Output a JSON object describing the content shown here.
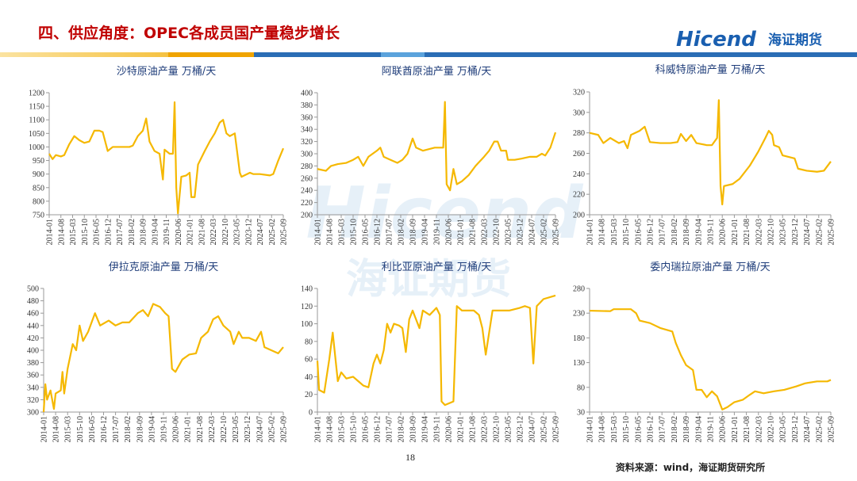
{
  "header": {
    "title": "四、供应角度：OPEC各成员国产量稳步增长"
  },
  "logo": {
    "brand": "Hicend",
    "cn": "海证期货"
  },
  "page_number": "18",
  "source": "资料来源：wind，海证期货研究所",
  "chart_data": [
    {
      "type": "line",
      "title": "沙特原油产量 万桶/天",
      "color": "#f5b800",
      "xlim": [
        "2014-01",
        "2025-09"
      ],
      "xticks": [
        "2014-01",
        "2014-08",
        "2015-03",
        "2015-10",
        "2016-05",
        "2016-12",
        "2017-07",
        "2018-02",
        "2018-09",
        "2019-04",
        "2019-11",
        "2020-06",
        "2021-01",
        "2021-08",
        "2022-03",
        "2022-10",
        "2023-05",
        "2023-12",
        "2024-07",
        "2025-02",
        "2025-09"
      ],
      "ylim": [
        750,
        1200
      ],
      "yticks": [
        750,
        800,
        850,
        900,
        950,
        1000,
        1050,
        1100,
        1150,
        1200
      ],
      "x": [
        "2014-01",
        "2014-03",
        "2014-05",
        "2014-08",
        "2014-10",
        "2015-01",
        "2015-04",
        "2015-07",
        "2015-10",
        "2016-01",
        "2016-04",
        "2016-07",
        "2016-09",
        "2016-12",
        "2017-03",
        "2017-07",
        "2017-10",
        "2018-01",
        "2018-03",
        "2018-06",
        "2018-09",
        "2018-11",
        "2019-01",
        "2019-04",
        "2019-07",
        "2019-09",
        "2019-10",
        "2020-01",
        "2020-03",
        "2020-04",
        "2020-05",
        "2020-06",
        "2020-08",
        "2020-11",
        "2021-01",
        "2021-02",
        "2021-04",
        "2021-06",
        "2021-10",
        "2022-01",
        "2022-04",
        "2022-07",
        "2022-09",
        "2022-11",
        "2023-01",
        "2023-04",
        "2023-07",
        "2023-08",
        "2024-01",
        "2024-03",
        "2024-07",
        "2025-01",
        "2025-03",
        "2025-06",
        "2025-09"
      ],
      "values": [
        975,
        955,
        970,
        965,
        970,
        1010,
        1040,
        1025,
        1015,
        1020,
        1060,
        1060,
        1055,
        985,
        1000,
        1000,
        1000,
        1000,
        1005,
        1040,
        1060,
        1105,
        1020,
        985,
        975,
        880,
        990,
        975,
        975,
        1165,
        850,
        755,
        890,
        895,
        905,
        815,
        815,
        935,
        985,
        1020,
        1050,
        1090,
        1100,
        1050,
        1040,
        1050,
        905,
        890,
        905,
        900,
        900,
        895,
        900,
        950,
        995
      ]
    },
    {
      "type": "line",
      "title": "阿联酋原油产量 万桶/天",
      "color": "#f5b800",
      "xlim": [
        "2014-01",
        "2025-09"
      ],
      "xticks": [
        "2014-01",
        "2014-08",
        "2015-03",
        "2015-10",
        "2016-05",
        "2016-12",
        "2017-07",
        "2018-02",
        "2018-09",
        "2019-04",
        "2019-11",
        "2020-06",
        "2021-01",
        "2021-08",
        "2022-03",
        "2022-10",
        "2023-05",
        "2023-12",
        "2024-07",
        "2025-02",
        "2025-09"
      ],
      "ylim": [
        200,
        400
      ],
      "yticks": [
        200,
        220,
        240,
        260,
        280,
        300,
        320,
        340,
        360,
        380,
        400
      ],
      "x": [
        "2014-01",
        "2014-06",
        "2014-09",
        "2015-01",
        "2015-06",
        "2015-10",
        "2016-01",
        "2016-04",
        "2016-07",
        "2016-12",
        "2017-02",
        "2017-04",
        "2017-08",
        "2017-12",
        "2018-03",
        "2018-06",
        "2018-09",
        "2018-11",
        "2019-03",
        "2019-10",
        "2020-01",
        "2020-03",
        "2020-04",
        "2020-05",
        "2020-07",
        "2020-09",
        "2020-11",
        "2021-02",
        "2021-06",
        "2021-10",
        "2022-03",
        "2022-06",
        "2022-09",
        "2022-11",
        "2023-01",
        "2023-04",
        "2023-05",
        "2023-09",
        "2024-01",
        "2024-06",
        "2024-10",
        "2025-01",
        "2025-03",
        "2025-06",
        "2025-09"
      ],
      "values": [
        275,
        272,
        280,
        283,
        285,
        290,
        295,
        280,
        295,
        305,
        310,
        295,
        290,
        285,
        290,
        300,
        325,
        310,
        305,
        310,
        310,
        310,
        385,
        250,
        240,
        275,
        250,
        255,
        265,
        280,
        295,
        305,
        320,
        320,
        305,
        305,
        290,
        290,
        292,
        295,
        295,
        300,
        297,
        310,
        335
      ]
    },
    {
      "type": "line",
      "title": "科威特原油产量 万桶/天",
      "color": "#f5b800",
      "xlim": [
        "2014-01",
        "2025-09"
      ],
      "xticks": [
        "2014-01",
        "2014-08",
        "2015-03",
        "2015-10",
        "2016-05",
        "2016-12",
        "2017-07",
        "2018-02",
        "2018-09",
        "2019-04",
        "2019-11",
        "2020-06",
        "2021-01",
        "2021-08",
        "2022-03",
        "2022-10",
        "2023-05",
        "2023-12",
        "2024-07",
        "2025-02",
        "2025-09"
      ],
      "ylim": [
        200,
        320
      ],
      "yticks": [
        200,
        220,
        240,
        260,
        280,
        300,
        320
      ],
      "x": [
        "2014-01",
        "2014-06",
        "2014-09",
        "2015-01",
        "2015-06",
        "2015-09",
        "2015-11",
        "2016-01",
        "2016-06",
        "2016-09",
        "2016-12",
        "2017-06",
        "2017-12",
        "2018-04",
        "2018-06",
        "2018-09",
        "2018-12",
        "2019-03",
        "2019-09",
        "2019-12",
        "2020-03",
        "2020-04",
        "2020-05",
        "2020-06",
        "2020-07",
        "2020-12",
        "2021-04",
        "2021-10",
        "2022-03",
        "2022-07",
        "2022-09",
        "2022-11",
        "2022-12",
        "2023-03",
        "2023-05",
        "2023-12",
        "2024-02",
        "2024-07",
        "2025-01",
        "2025-05",
        "2025-09"
      ],
      "values": [
        280,
        278,
        270,
        275,
        270,
        272,
        265,
        278,
        282,
        286,
        271,
        270,
        270,
        271,
        279,
        272,
        278,
        270,
        268,
        268,
        275,
        312,
        228,
        210,
        228,
        230,
        235,
        248,
        262,
        275,
        282,
        278,
        268,
        266,
        258,
        255,
        245,
        243,
        242,
        243,
        252
      ]
    },
    {
      "type": "line",
      "title": "伊拉克原油产量 万桶/天",
      "color": "#f5b800",
      "xlim": [
        "2014-01",
        "2025-09"
      ],
      "xticks": [
        "2014-01",
        "2014-08",
        "2015-03",
        "2015-10",
        "2016-05",
        "2016-12",
        "2017-07",
        "2018-02",
        "2018-09",
        "2019-04",
        "2019-11",
        "2020-06",
        "2021-01",
        "2021-08",
        "2022-03",
        "2022-10",
        "2023-05",
        "2023-12",
        "2024-07",
        "2025-02",
        "2025-09"
      ],
      "ylim": [
        300,
        500
      ],
      "yticks": [
        300,
        320,
        340,
        360,
        380,
        400,
        420,
        440,
        460,
        480,
        500
      ],
      "x": [
        "2014-01",
        "2014-02",
        "2014-03",
        "2014-05",
        "2014-07",
        "2014-08",
        "2014-11",
        "2014-12",
        "2015-01",
        "2015-03",
        "2015-06",
        "2015-08",
        "2015-10",
        "2015-12",
        "2016-03",
        "2016-07",
        "2016-10",
        "2017-03",
        "2017-07",
        "2017-11",
        "2018-03",
        "2018-08",
        "2018-11",
        "2019-02",
        "2019-05",
        "2019-09",
        "2019-12",
        "2020-02",
        "2020-04",
        "2020-06",
        "2020-10",
        "2021-02",
        "2021-06",
        "2021-09",
        "2022-01",
        "2022-04",
        "2022-07",
        "2022-10",
        "2023-02",
        "2023-04",
        "2023-07",
        "2023-09",
        "2024-01",
        "2024-05",
        "2024-08",
        "2024-10",
        "2025-02",
        "2025-06",
        "2025-09"
      ],
      "values": [
        300,
        345,
        320,
        335,
        305,
        330,
        335,
        365,
        330,
        370,
        410,
        400,
        440,
        415,
        430,
        460,
        440,
        448,
        440,
        445,
        445,
        460,
        465,
        455,
        475,
        470,
        460,
        455,
        370,
        365,
        385,
        393,
        395,
        420,
        430,
        450,
        455,
        440,
        430,
        410,
        430,
        420,
        420,
        415,
        430,
        405,
        400,
        395,
        405
      ]
    },
    {
      "type": "line",
      "title": "利比亚原油产量 万桶/天",
      "color": "#f5b800",
      "xlim": [
        "2014-01",
        "2025-09"
      ],
      "xticks": [
        "2014-01",
        "2014-08",
        "2015-03",
        "2015-10",
        "2016-05",
        "2016-12",
        "2017-07",
        "2018-02",
        "2018-09",
        "2019-04",
        "2019-11",
        "2020-06",
        "2021-01",
        "2021-08",
        "2022-03",
        "2022-10",
        "2023-05",
        "2023-12",
        "2024-07",
        "2025-02",
        "2025-09"
      ],
      "ylim": [
        0,
        140
      ],
      "yticks": [
        0,
        20,
        40,
        60,
        80,
        100,
        120,
        140
      ],
      "x": [
        "2014-01",
        "2014-02",
        "2014-05",
        "2014-08",
        "2014-10",
        "2015-01",
        "2015-03",
        "2015-06",
        "2015-10",
        "2016-01",
        "2016-04",
        "2016-07",
        "2016-10",
        "2016-12",
        "2017-02",
        "2017-04",
        "2017-06",
        "2017-08",
        "2017-10",
        "2018-01",
        "2018-03",
        "2018-05",
        "2018-07",
        "2018-09",
        "2018-11",
        "2019-01",
        "2019-03",
        "2019-07",
        "2019-11",
        "2020-01",
        "2020-02",
        "2020-04",
        "2020-09",
        "2020-11",
        "2021-02",
        "2021-06",
        "2021-09",
        "2021-12",
        "2022-02",
        "2022-04",
        "2022-06",
        "2022-08",
        "2023-01",
        "2023-06",
        "2023-12",
        "2024-03",
        "2024-06",
        "2024-08",
        "2024-10",
        "2025-02",
        "2025-09"
      ],
      "values": [
        58,
        25,
        22,
        60,
        90,
        35,
        45,
        38,
        40,
        35,
        30,
        28,
        55,
        65,
        55,
        70,
        100,
        90,
        100,
        98,
        95,
        68,
        105,
        115,
        105,
        95,
        115,
        110,
        118,
        110,
        12,
        8,
        12,
        120,
        115,
        115,
        115,
        110,
        95,
        65,
        90,
        115,
        115,
        115,
        118,
        120,
        118,
        55,
        120,
        128,
        132
      ]
    },
    {
      "type": "line",
      "title": "委内瑞拉原油产量 万桶/天",
      "color": "#f5b800",
      "xlim": [
        "2014-01",
        "2025-09"
      ],
      "xticks": [
        "2014-01",
        "2014-08",
        "2015-03",
        "2015-10",
        "2016-05",
        "2016-12",
        "2017-07",
        "2018-02",
        "2018-09",
        "2019-04",
        "2019-11",
        "2020-06",
        "2021-01",
        "2021-08",
        "2022-03",
        "2022-10",
        "2023-05",
        "2023-12",
        "2024-07",
        "2025-02",
        "2025-09"
      ],
      "ylim": [
        30,
        280
      ],
      "yticks": [
        30,
        80,
        130,
        180,
        230,
        280
      ],
      "x": [
        "2014-01",
        "2015-01",
        "2015-03",
        "2016-01",
        "2016-04",
        "2016-06",
        "2016-12",
        "2017-06",
        "2018-01",
        "2018-03",
        "2018-06",
        "2018-09",
        "2019-01",
        "2019-03",
        "2019-06",
        "2019-09",
        "2019-12",
        "2020-03",
        "2020-06",
        "2020-09",
        "2021-01",
        "2021-06",
        "2021-10",
        "2022-01",
        "2022-06",
        "2022-12",
        "2023-06",
        "2024-01",
        "2024-06",
        "2025-01",
        "2025-07",
        "2025-09"
      ],
      "values": [
        235,
        234,
        238,
        238,
        230,
        215,
        210,
        200,
        193,
        170,
        145,
        125,
        115,
        75,
        75,
        60,
        72,
        62,
        35,
        40,
        50,
        55,
        65,
        72,
        68,
        72,
        75,
        82,
        88,
        92,
        92,
        95
      ]
    }
  ]
}
